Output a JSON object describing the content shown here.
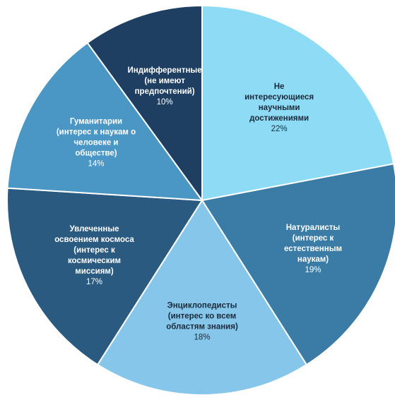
{
  "chart_data": {
    "type": "pie",
    "title": "",
    "slices": [
      {
        "label": [
          "Не",
          "интересующиеся",
          "научными",
          "достижениями"
        ],
        "value": 22,
        "value_label": "22%",
        "color": "#8ddbf5",
        "text_color": "#1b2a3a"
      },
      {
        "label": [
          "Натуралисты",
          "(интерес к",
          "естественным",
          "наукам)"
        ],
        "value": 19,
        "value_label": "19%",
        "color": "#3a7ca6",
        "text_color": "#ffffff"
      },
      {
        "label": [
          "Энциклопедисты",
          "(интерес ко всем",
          "областям знания)"
        ],
        "value": 18,
        "value_label": "18%",
        "color": "#85c6ea",
        "text_color": "#1b2a3a"
      },
      {
        "label": [
          "Увлеченные",
          "освоением космоса",
          "(интерес к",
          "космическим",
          "миссиям)"
        ],
        "value": 17,
        "value_label": "17%",
        "color": "#2a5a80",
        "text_color": "#ffffff"
      },
      {
        "label": [
          "Гуманитарии",
          "(интерес к наукам о",
          "человеке и",
          "обществе)"
        ],
        "value": 14,
        "value_label": "14%",
        "color": "#4a97c5",
        "text_color": "#ffffff"
      },
      {
        "label": [
          "Индифферентные",
          "(не имеют",
          "предпочтений)"
        ],
        "value": 10,
        "value_label": "10%",
        "color": "#1e3f62",
        "text_color": "#ffffff"
      }
    ]
  }
}
